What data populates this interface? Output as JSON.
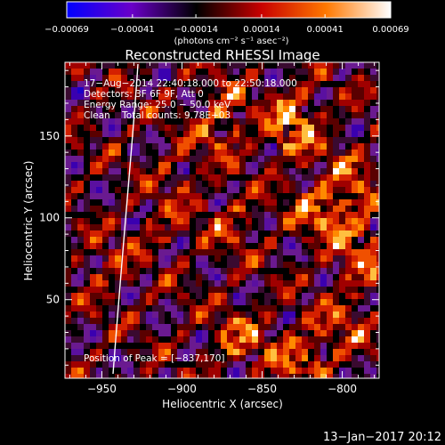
{
  "chart_data": {
    "type": "heatmap",
    "title": "Reconstructed RHESSI Image",
    "xlabel": "Heliocentric X (arcsec)",
    "ylabel": "Heliocentric Y (arcsec)",
    "xlim": [
      -973,
      -777
    ],
    "ylim": [
      2,
      195
    ],
    "x_ticks": [
      -950,
      -900,
      -850,
      -800
    ],
    "x_tick_labels": [
      "−950",
      "−900",
      "−850",
      "−800"
    ],
    "y_ticks": [
      50,
      100,
      150
    ],
    "y_tick_labels": [
      "50",
      "100",
      "150"
    ],
    "colorbar": {
      "range": [
        -0.00069,
        0.00069
      ],
      "ticks": [
        -0.00069,
        -0.00041,
        -0.00014,
        0.00014,
        0.00041,
        0.00069
      ],
      "tick_labels": [
        "−0.00069",
        "−0.00041",
        "−0.00014",
        "0.00014",
        "0.00041",
        "0.00069"
      ],
      "unit_label": "(photons cm⁻² s⁻¹ asec⁻²)",
      "colors": [
        "#0000ff",
        "#6a00c8",
        "#000000",
        "#c80000",
        "#ff7800",
        "#ffffff"
      ]
    },
    "annotations": [
      "17−Aug−2014 22:40:18.000 to 22:50:18.000",
      "Detectors: 3F 6F 9F, Att 0",
      "Energy Range: 25.0 − 50.0 keV",
      "Clean    Total counts: 9.78E+03"
    ],
    "peak_label": "Position of Peak = [−837,170]",
    "peak": [
      -837,
      170
    ],
    "grid": false
  },
  "footer": {
    "timestamp": "13−Jan−2017 20:12"
  }
}
